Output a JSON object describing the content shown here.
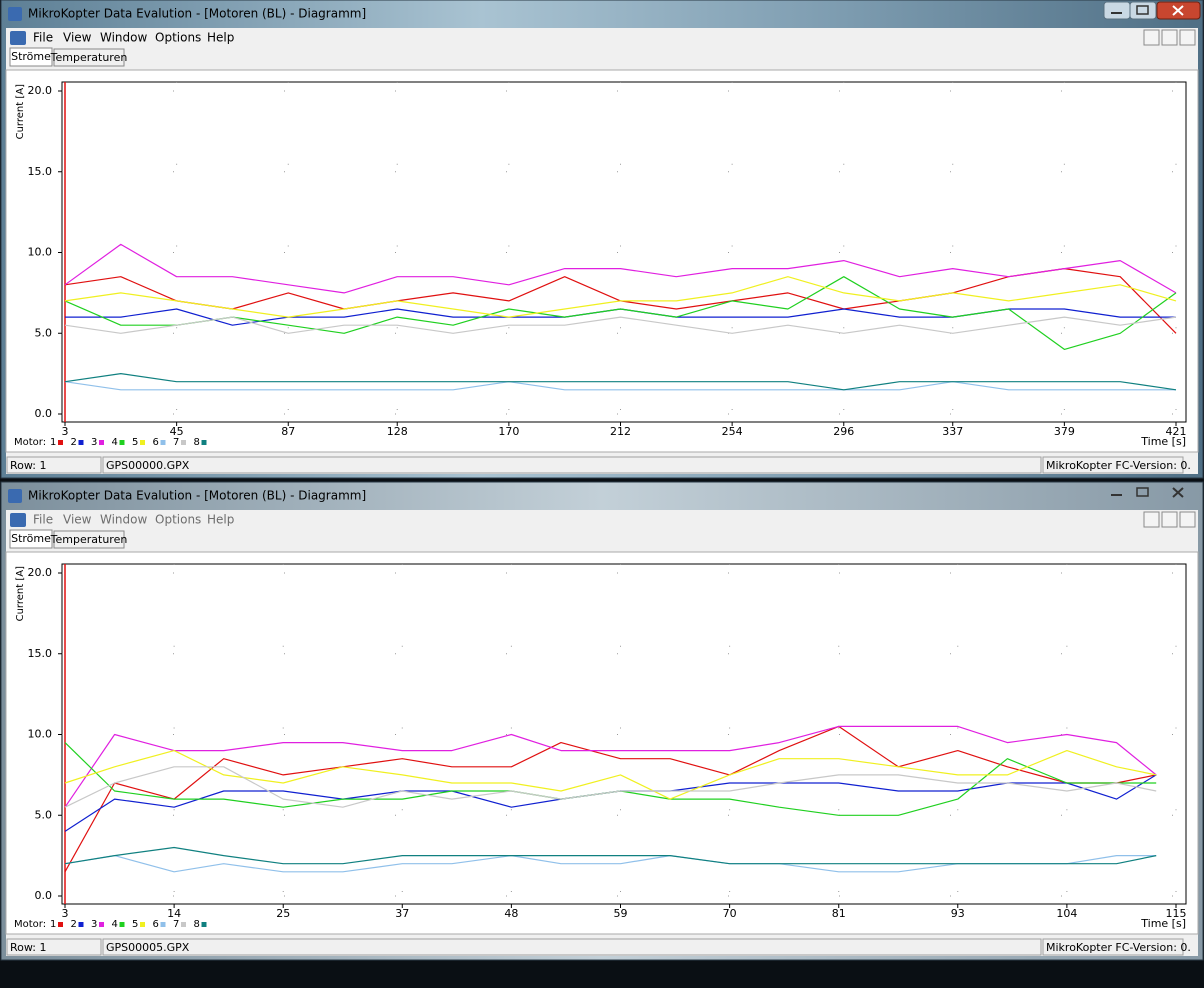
{
  "windows": [
    {
      "title": "MikroKopter Data Evalution - [Motoren (BL) - Diagramm]",
      "menu": [
        "File",
        "View",
        "Window",
        "Options",
        "Help"
      ],
      "tabs": [
        "Ströme",
        "Temperaturen"
      ],
      "status": {
        "row": "Row: 1",
        "file": "GPS00000.GPX",
        "version": "MikroKopter FC-Version: 0."
      }
    },
    {
      "title": "MikroKopter Data Evalution - [Motoren (BL) - Diagramm]",
      "menu": [
        "File",
        "View",
        "Window",
        "Options",
        "Help"
      ],
      "tabs": [
        "Ströme",
        "Temperaturen"
      ],
      "status": {
        "row": "Row: 1",
        "file": "GPS00005.GPX",
        "version": "MikroKopter FC-Version: 0."
      }
    }
  ],
  "chart_data": [
    {
      "type": "line",
      "y_label": "Current [A]",
      "x_label": "Time [s]",
      "legend_label": "Motor:",
      "grid": true,
      "xlim": [
        3,
        421
      ],
      "xticks": [
        3,
        45,
        87,
        128,
        170,
        212,
        254,
        296,
        337,
        379,
        421
      ],
      "ylim": [
        0,
        20
      ],
      "yticks": [
        {
          "value": 0,
          "label": "0.0"
        },
        {
          "value": 5,
          "label": "5.0"
        },
        {
          "value": 10,
          "label": "10.0"
        },
        {
          "value": 15,
          "label": "15.0"
        },
        {
          "value": 20,
          "label": "20.0"
        }
      ],
      "x": [
        3,
        24,
        45,
        66,
        87,
        108,
        128,
        149,
        170,
        191,
        212,
        233,
        254,
        275,
        296,
        317,
        337,
        358,
        379,
        400,
        421
      ],
      "series": [
        {
          "name": "1",
          "color": "#e01010",
          "values": [
            8.0,
            8.5,
            7.0,
            6.5,
            7.5,
            6.5,
            7.0,
            7.5,
            7.0,
            8.5,
            7.0,
            6.5,
            7.0,
            7.5,
            6.5,
            7.0,
            7.5,
            8.5,
            9.0,
            8.5,
            5.0
          ]
        },
        {
          "name": "2",
          "color": "#1020d0",
          "values": [
            6.0,
            6.0,
            6.5,
            5.5,
            6.0,
            6.0,
            6.5,
            6.0,
            6.0,
            6.0,
            6.5,
            6.0,
            6.0,
            6.0,
            6.5,
            6.0,
            6.0,
            6.5,
            6.5,
            6.0,
            6.0
          ]
        },
        {
          "name": "3",
          "color": "#e020e0",
          "values": [
            8.0,
            10.5,
            8.5,
            8.5,
            8.0,
            7.5,
            8.5,
            8.5,
            8.0,
            9.0,
            9.0,
            8.5,
            9.0,
            9.0,
            9.5,
            8.5,
            9.0,
            8.5,
            9.0,
            9.5,
            7.5
          ]
        },
        {
          "name": "4",
          "color": "#20d020",
          "values": [
            7.0,
            5.5,
            5.5,
            6.0,
            5.5,
            5.0,
            6.0,
            5.5,
            6.5,
            6.0,
            6.5,
            6.0,
            7.0,
            6.5,
            8.5,
            6.5,
            6.0,
            6.5,
            4.0,
            5.0,
            7.5
          ]
        },
        {
          "name": "5",
          "color": "#f0f020",
          "values": [
            7.0,
            7.5,
            7.0,
            6.5,
            6.0,
            6.5,
            7.0,
            6.5,
            6.0,
            6.5,
            7.0,
            7.0,
            7.5,
            8.5,
            7.5,
            7.0,
            7.5,
            7.0,
            7.5,
            8.0,
            7.0
          ]
        },
        {
          "name": "6",
          "color": "#90c0ea",
          "values": [
            2.0,
            1.5,
            1.5,
            1.5,
            1.5,
            1.5,
            1.5,
            1.5,
            2.0,
            1.5,
            1.5,
            1.5,
            1.5,
            1.5,
            1.5,
            1.5,
            2.0,
            1.5,
            1.5,
            1.5,
            1.5
          ]
        },
        {
          "name": "7",
          "color": "#c8c8c8",
          "values": [
            5.5,
            5.0,
            5.5,
            6.0,
            5.0,
            5.5,
            5.5,
            5.0,
            5.5,
            5.5,
            6.0,
            5.5,
            5.0,
            5.5,
            5.0,
            5.5,
            5.0,
            5.5,
            6.0,
            5.5,
            6.0
          ]
        },
        {
          "name": "8",
          "color": "#108080",
          "values": [
            2.0,
            2.5,
            2.0,
            2.0,
            2.0,
            2.0,
            2.0,
            2.0,
            2.0,
            2.0,
            2.0,
            2.0,
            2.0,
            2.0,
            1.5,
            2.0,
            2.0,
            2.0,
            2.0,
            2.0,
            1.5
          ]
        }
      ]
    },
    {
      "type": "line",
      "y_label": "Current [A]",
      "x_label": "Time [s]",
      "legend_label": "Motor:",
      "grid": true,
      "xlim": [
        3,
        115
      ],
      "xticks": [
        3,
        14,
        25,
        37,
        48,
        59,
        70,
        81,
        93,
        104,
        115
      ],
      "ylim": [
        0,
        20
      ],
      "yticks": [
        {
          "value": 0,
          "label": "0.0"
        },
        {
          "value": 5,
          "label": "5.0"
        },
        {
          "value": 10,
          "label": "10.0"
        },
        {
          "value": 15,
          "label": "15.0"
        },
        {
          "value": 20,
          "label": "20.0"
        }
      ],
      "x": [
        3,
        8,
        14,
        19,
        25,
        31,
        37,
        42,
        48,
        53,
        59,
        64,
        70,
        75,
        81,
        87,
        93,
        98,
        104,
        109,
        113
      ],
      "series": [
        {
          "name": "1",
          "color": "#e01010",
          "values": [
            1.5,
            7.0,
            6.0,
            8.5,
            7.5,
            8.0,
            8.5,
            8.0,
            8.0,
            9.5,
            8.5,
            8.5,
            7.5,
            9.0,
            10.5,
            8.0,
            9.0,
            8.0,
            7.0,
            7.0,
            7.5
          ]
        },
        {
          "name": "2",
          "color": "#1020d0",
          "values": [
            4.0,
            6.0,
            5.5,
            6.5,
            6.5,
            6.0,
            6.5,
            6.5,
            5.5,
            6.0,
            6.5,
            6.5,
            7.0,
            7.0,
            7.0,
            6.5,
            6.5,
            7.0,
            7.0,
            6.0,
            7.5
          ]
        },
        {
          "name": "3",
          "color": "#e020e0",
          "values": [
            5.5,
            10.0,
            9.0,
            9.0,
            9.5,
            9.5,
            9.0,
            9.0,
            10.0,
            9.0,
            9.0,
            9.0,
            9.0,
            9.5,
            10.5,
            10.5,
            10.5,
            9.5,
            10.0,
            9.5,
            7.5
          ]
        },
        {
          "name": "4",
          "color": "#20d020",
          "values": [
            9.5,
            6.5,
            6.0,
            6.0,
            5.5,
            6.0,
            6.0,
            6.5,
            6.5,
            6.0,
            6.5,
            6.0,
            6.0,
            5.5,
            5.0,
            5.0,
            6.0,
            8.5,
            7.0,
            7.0,
            7.0
          ]
        },
        {
          "name": "5",
          "color": "#f0f020",
          "values": [
            7.0,
            8.0,
            9.0,
            7.5,
            7.0,
            8.0,
            7.5,
            7.0,
            7.0,
            6.5,
            7.5,
            6.0,
            7.5,
            8.5,
            8.5,
            8.0,
            7.5,
            7.5,
            9.0,
            8.0,
            7.5
          ]
        },
        {
          "name": "6",
          "color": "#90c0ea",
          "values": [
            2.0,
            2.5,
            1.5,
            2.0,
            1.5,
            1.5,
            2.0,
            2.0,
            2.5,
            2.0,
            2.0,
            2.5,
            2.0,
            2.0,
            1.5,
            1.5,
            2.0,
            2.0,
            2.0,
            2.5,
            2.5
          ]
        },
        {
          "name": "7",
          "color": "#c8c8c8",
          "values": [
            5.5,
            7.0,
            8.0,
            8.0,
            6.0,
            5.5,
            6.5,
            6.0,
            6.5,
            6.0,
            6.5,
            6.5,
            6.5,
            7.0,
            7.5,
            7.5,
            7.0,
            7.0,
            6.5,
            7.0,
            6.5
          ]
        },
        {
          "name": "8",
          "color": "#108080",
          "values": [
            2.0,
            2.5,
            3.0,
            2.5,
            2.0,
            2.0,
            2.5,
            2.5,
            2.5,
            2.5,
            2.5,
            2.5,
            2.0,
            2.0,
            2.0,
            2.0,
            2.0,
            2.0,
            2.0,
            2.0,
            2.5
          ]
        }
      ]
    }
  ]
}
